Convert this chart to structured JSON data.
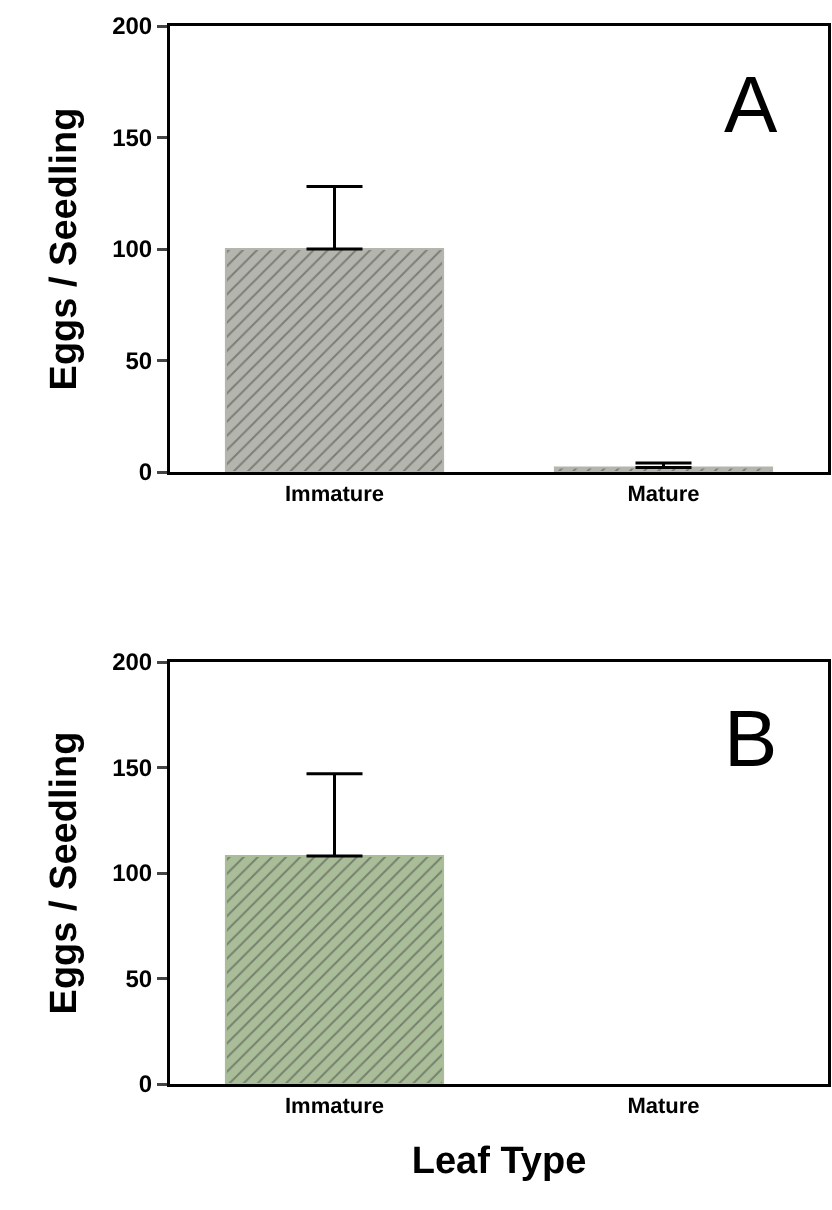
{
  "chart_data": [
    {
      "type": "bar",
      "ylabel": "Eggs / Seedling",
      "categories": [
        "Immature",
        "Mature"
      ],
      "values": [
        100,
        2
      ],
      "errors": [
        [
          100,
          128
        ],
        [
          2,
          4
        ]
      ],
      "color": "#b4b6ae",
      "ylim": [
        0,
        200
      ],
      "yticks": [
        0,
        50,
        100,
        150,
        200
      ],
      "grid": false,
      "legend": false,
      "annotations": [
        "A"
      ]
    },
    {
      "type": "bar",
      "ylabel": "Eggs / Seedling",
      "xlabel": "Leaf Type",
      "categories": [
        "Immature",
        "Mature"
      ],
      "values": [
        108,
        0
      ],
      "errors": [
        [
          108,
          147
        ],
        null
      ],
      "color": "#a9bd98",
      "ylim": [
        0,
        200
      ],
      "yticks": [
        0,
        50,
        100,
        150,
        200
      ],
      "grid": false,
      "legend": false,
      "annotations": [
        "B"
      ]
    }
  ]
}
